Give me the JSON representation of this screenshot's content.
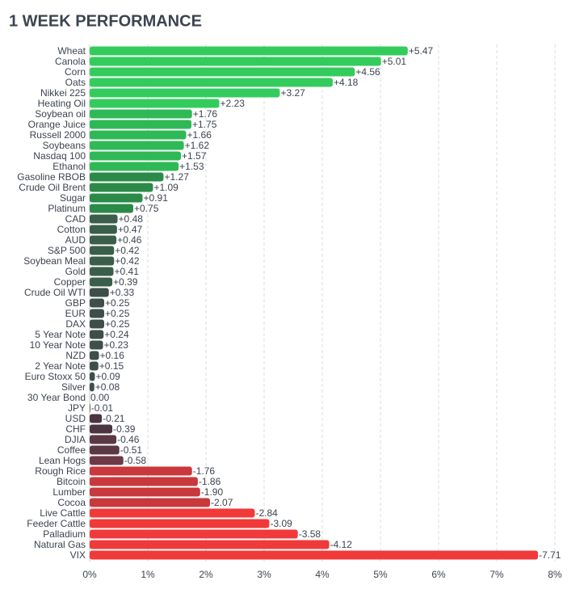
{
  "chart_data": {
    "type": "hbar",
    "title": "1 WEEK PERFORMANCE",
    "categories": [
      "Wheat",
      "Canola",
      "Corn",
      "Oats",
      "Nikkei 225",
      "Heating Oil",
      "Soybean oil",
      "Orange Juice",
      "Russell 2000",
      "Soybeans",
      "Nasdaq 100",
      "Ethanol",
      "Gasoline RBOB",
      "Crude Oil Brent",
      "Sugar",
      "Platinum",
      "CAD",
      "Cotton",
      "AUD",
      "S&P 500",
      "Soybean Meal",
      "Gold",
      "Copper",
      "Crude Oil WTI",
      "GBP",
      "EUR",
      "DAX",
      "5 Year Note",
      "10 Year Note",
      "NZD",
      "2 Year Note",
      "Euro Stoxx 50",
      "Silver",
      "30 Year Bond",
      "JPY",
      "USD",
      "CHF",
      "DJIA",
      "Coffee",
      "Lean Hogs",
      "Rough Rice",
      "Bitcoin",
      "Lumber",
      "Cocoa",
      "Live Cattle",
      "Feeder Cattle",
      "Palladium",
      "Natural Gas",
      "VIX"
    ],
    "values": [
      5.47,
      5.01,
      4.56,
      4.18,
      3.27,
      2.23,
      1.76,
      1.75,
      1.66,
      1.62,
      1.57,
      1.53,
      1.27,
      1.09,
      0.91,
      0.75,
      0.48,
      0.47,
      0.46,
      0.42,
      0.42,
      0.41,
      0.39,
      0.33,
      0.25,
      0.25,
      0.25,
      0.24,
      0.23,
      0.16,
      0.15,
      0.09,
      0.08,
      0,
      -0.01,
      -0.21,
      -0.39,
      -0.46,
      -0.51,
      -0.58,
      -1.76,
      -1.86,
      -1.9,
      -2.07,
      -2.84,
      -3.09,
      -3.58,
      -4.12,
      -7.71
    ],
    "value_labels": [
      "+5.47",
      "+5.01",
      "+4.56",
      "+4.18",
      "+3.27",
      "+2.23",
      "+1.76",
      "+1.75",
      "+1.66",
      "+1.62",
      "+1.57",
      "+1.53",
      "+1.27",
      "+1.09",
      "+0.91",
      "+0.75",
      "+0.48",
      "+0.47",
      "+0.46",
      "+0.42",
      "+0.42",
      "+0.41",
      "+0.39",
      "+0.33",
      "+0.25",
      "+0.25",
      "+0.25",
      "+0.24",
      "+0.23",
      "+0.16",
      "+0.15",
      "+0.09",
      "+0.08",
      "0.00",
      "-0.01",
      "-0.21",
      "-0.39",
      "-0.46",
      "-0.51",
      "-0.58",
      "-1.76",
      "-1.86",
      "-1.90",
      "-2.07",
      "-2.84",
      "-3.09",
      "-3.58",
      "-4.12",
      "-7.71"
    ],
    "colors": [
      "#33cc5c",
      "#33cc5c",
      "#33cc5c",
      "#33cc5c",
      "#33cc5c",
      "#33cc5c",
      "#2fb956",
      "#2fb956",
      "#2fb956",
      "#2fb956",
      "#2fb956",
      "#2fb956",
      "#2b8a48",
      "#2b8a48",
      "#2b8a48",
      "#2b8a48",
      "#3b5e4a",
      "#3b5e4a",
      "#3b5e4a",
      "#3b5e4a",
      "#3b5e4a",
      "#3b5e4a",
      "#3b5e4a",
      "#3e4f4a",
      "#3e4f4a",
      "#3e4f4a",
      "#3e4f4a",
      "#3e4f4a",
      "#3e4f4a",
      "#3e4f4a",
      "#3e4f4a",
      "#3e4f4a",
      "#3e4f4a",
      "#3e4f4a",
      "#4a3540",
      "#4a3540",
      "#4a3540",
      "#5c3744",
      "#5c3744",
      "#6e3a48",
      "#c8383c",
      "#c8383c",
      "#c8383c",
      "#c8383c",
      "#f03a3a",
      "#f03a3a",
      "#f03a3a",
      "#f03a3a",
      "#f03a3a"
    ],
    "xlim": [
      0,
      8
    ],
    "xticks": [
      {
        "value": 0,
        "label": "0%"
      },
      {
        "value": 1,
        "label": "1%"
      },
      {
        "value": 2,
        "label": "2%"
      },
      {
        "value": 3,
        "label": "3%"
      },
      {
        "value": 4,
        "label": "4%"
      },
      {
        "value": 5,
        "label": "5%"
      },
      {
        "value": 6,
        "label": "6%"
      },
      {
        "value": 7,
        "label": "7%"
      },
      {
        "value": 8,
        "label": "8%"
      }
    ],
    "grid": true
  }
}
